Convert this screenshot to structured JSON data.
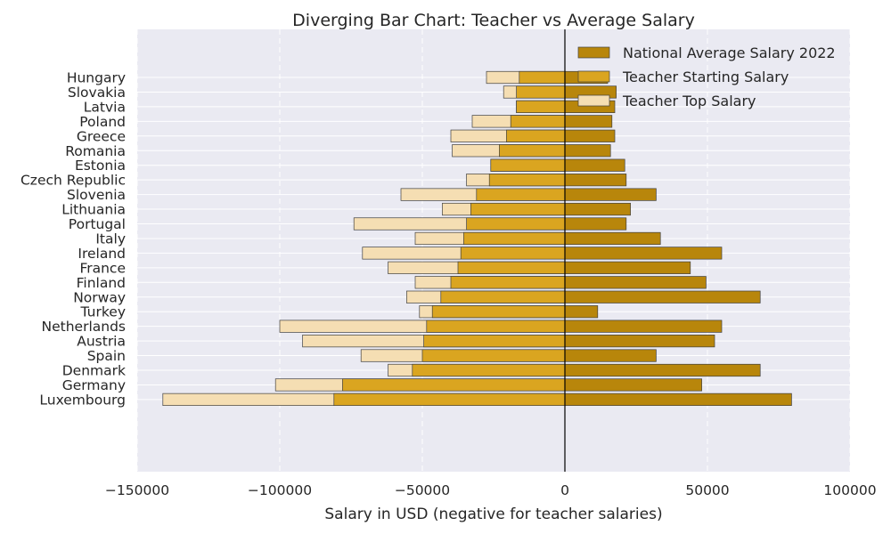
{
  "chart_data": {
    "type": "bar",
    "orientation": "horizontal-diverging",
    "title": "Diverging Bar Chart: Teacher vs Average Salary",
    "xlabel": "Salary in USD (negative for teacher salaries)",
    "ylabel": "",
    "xlim": [
      -150000,
      100000
    ],
    "xticks": [
      -150000,
      -100000,
      -50000,
      0,
      50000,
      100000
    ],
    "xtick_labels": [
      "−150000",
      "−100000",
      "−50000",
      "0",
      "50000",
      "100000"
    ],
    "grid": true,
    "legend_position": "top-right",
    "categories": [
      "Hungary",
      "Slovakia",
      "Latvia",
      "Poland",
      "Greece",
      "Romania",
      "Estonia",
      "Czech Republic",
      "Slovenia",
      "Lithuania",
      "Portugal",
      "Italy",
      "Ireland",
      "France",
      "Finland",
      "Norway",
      "Turkey",
      "Netherlands",
      "Austria",
      "Spain",
      "Denmark",
      "Germany",
      "Luxembourg"
    ],
    "series": [
      {
        "name": "National Average Salary 2022",
        "color": "#b8860b",
        "values": [
          15000,
          18000,
          17500,
          16500,
          17500,
          16000,
          21000,
          21500,
          32000,
          23000,
          21500,
          33500,
          55000,
          44000,
          49500,
          68500,
          11500,
          55000,
          52500,
          32000,
          68500,
          48000,
          79500
        ]
      },
      {
        "name": "Teacher Starting Salary",
        "color": "#daa520",
        "values": [
          -16000,
          -17000,
          -17000,
          -19000,
          -20500,
          -23000,
          -26000,
          -26500,
          -31000,
          -33000,
          -34500,
          -35500,
          -36500,
          -37500,
          -40000,
          -43500,
          -46500,
          -48500,
          -49500,
          -50000,
          -53500,
          -78000,
          -81000
        ]
      },
      {
        "name": "Teacher Top Salary",
        "color": "#f5deb3",
        "values": [
          -27500,
          -21500,
          -17000,
          -32500,
          -40000,
          -39500,
          -26000,
          -34500,
          -57500,
          -43000,
          -74000,
          -52500,
          -71000,
          -62000,
          -52500,
          -55500,
          -51000,
          -100000,
          -92000,
          -71500,
          -62000,
          -101500,
          -141000
        ]
      }
    ]
  },
  "colors": {
    "plot_background": "#eaeaf2",
    "grid": "#ffffff",
    "bar_edge": "#404040",
    "zero_line": "#000000"
  }
}
